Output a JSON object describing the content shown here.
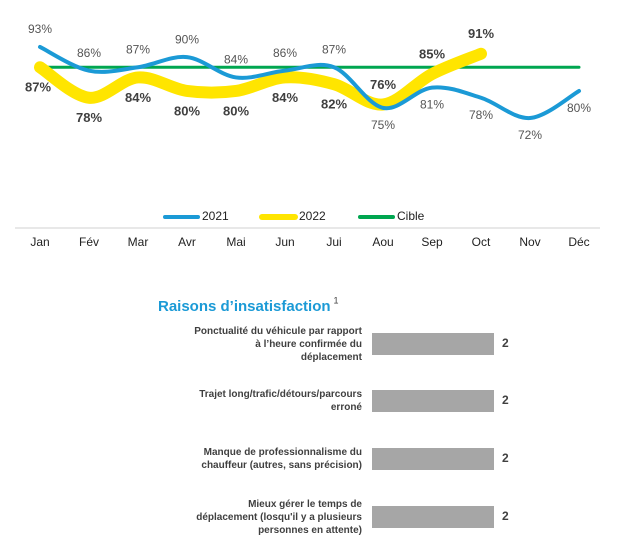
{
  "chart_data": [
    {
      "type": "line",
      "categories": [
        "Jan",
        "Fév",
        "Mar",
        "Avr",
        "Mai",
        "Jun",
        "Jui",
        "Aou",
        "Sep",
        "Oct",
        "Nov",
        "Déc"
      ],
      "ylim": [
        70,
        95
      ],
      "series": [
        {
          "name": "2021",
          "color": "#1b9ad6",
          "values": [
            93,
            86,
            87,
            90,
            84,
            86,
            87,
            75,
            81,
            78,
            72,
            80
          ],
          "value_labels": [
            "93%",
            "86%",
            "87%",
            "90%",
            "84%",
            "86%",
            "87%",
            "75%",
            "81%",
            "78%",
            "72%",
            "80%"
          ]
        },
        {
          "name": "2022",
          "color": "#ffe500",
          "values": [
            87,
            78,
            84,
            80,
            80,
            84,
            82,
            76,
            85,
            91,
            null,
            null
          ],
          "value_labels": [
            "87%",
            "78%",
            "84%",
            "80%",
            "80%",
            "84%",
            "82%",
            "76%",
            "85%",
            "91%",
            null,
            null
          ]
        },
        {
          "name": "Cible",
          "color": "#00a650",
          "values": [
            87,
            87,
            87,
            87,
            87,
            87,
            87,
            87,
            87,
            87,
            87,
            87
          ]
        }
      ]
    },
    {
      "type": "barh",
      "title": "Raisons d’insatisfaction",
      "title_note": "1",
      "color": "#a6a6a6",
      "xlim": [
        0,
        2
      ],
      "categories": [
        "Ponctualité du véhicule par rapport\nà l’heure confirmée du\ndéplacement",
        "Trajet long/trafic/détours/parcours\nerroné",
        "Manque de professionnalisme du\nchauffeur (autres, sans précision)",
        "Mieux gérer le temps de\ndéplacement (losqu'il y a plusieurs\npersonnes en attente)"
      ],
      "values": [
        2,
        2,
        2,
        2
      ]
    }
  ]
}
